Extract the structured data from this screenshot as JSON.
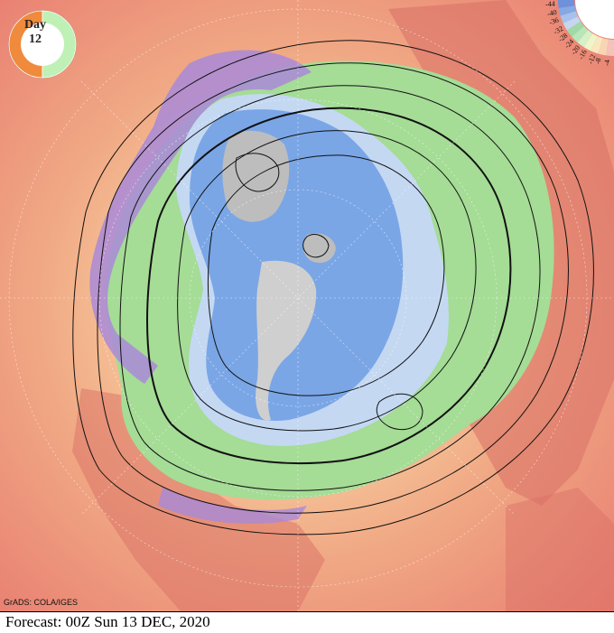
{
  "day_badge": {
    "label": "Day",
    "number": "12",
    "fraction_elapsed": 0.5
  },
  "legend": {
    "labels": [
      "-4",
      "-8",
      "-12",
      "-16",
      "-20",
      "-24",
      "-28",
      "-32",
      "-36",
      "-40",
      "-44"
    ],
    "colors": [
      "#f4c2b8",
      "#f7d5b5",
      "#f9e7c0",
      "#eef5c8",
      "#d6f0c8",
      "#b8e6b8",
      "#9fd9a6",
      "#c6d6f0",
      "#a6c2ec",
      "#86a8e3",
      "#6f90da"
    ]
  },
  "credit": "GrADS: COLA/IGES",
  "forecast_label": "Forecast: 00Z Sun 13 DEC, 2020",
  "colors": {
    "warm_background": "#e98a78",
    "land_warm": "#d9786a",
    "green_zone": "#9fdb93",
    "purple_band": "#a98ad8",
    "blue_core": "#7aa6e6",
    "grey_ice": "#b9b9b9",
    "contour": "#111111"
  }
}
